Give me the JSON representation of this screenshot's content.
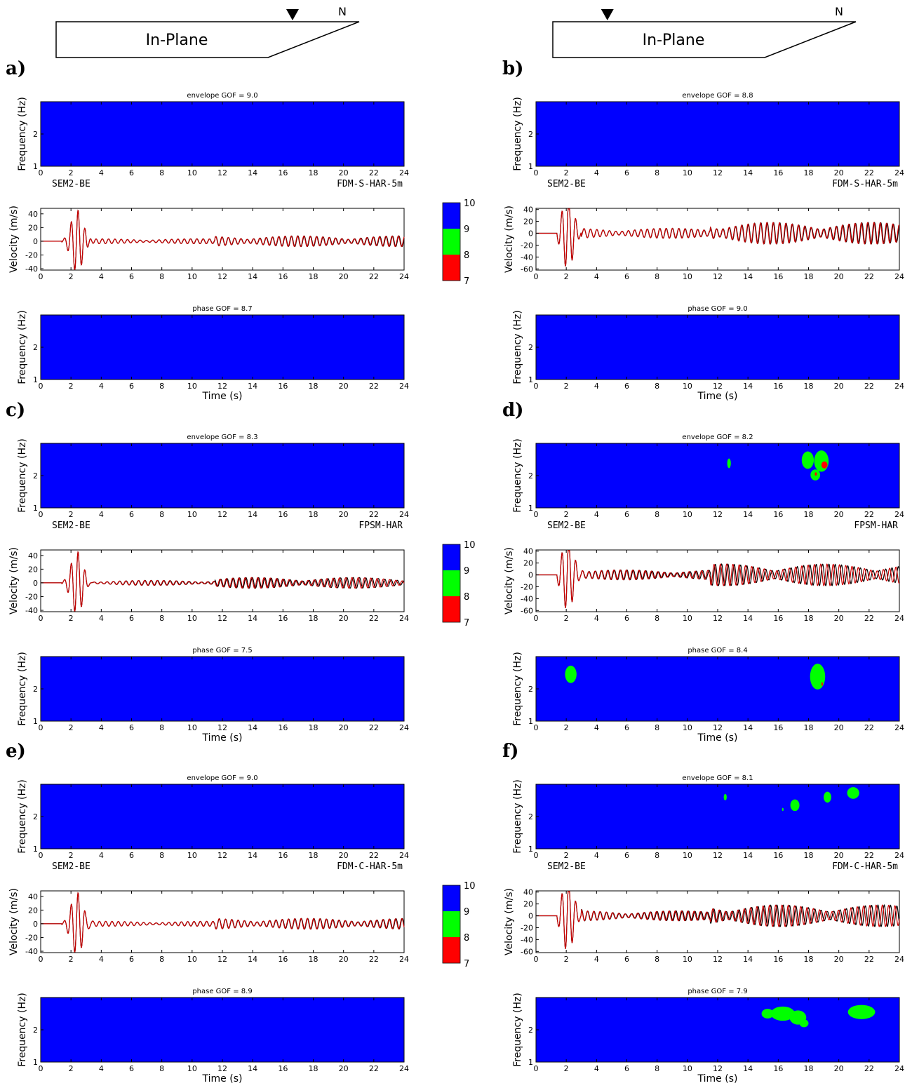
{
  "header": {
    "left": {
      "label": "In-Plane",
      "north": "N",
      "station_frac": 0.78
    },
    "right": {
      "label": "In-Plane",
      "north": "N",
      "station_frac": 0.18
    }
  },
  "colorbar": {
    "ticks": [
      "10",
      "9",
      "8",
      "7"
    ],
    "colors": [
      "#0000ff",
      "#00ff00",
      "#ff0000"
    ]
  },
  "colors": {
    "background": "#0000ff",
    "good": "#00ff00",
    "bad": "#ff0000",
    "reference": "#000000",
    "model": "#cc0000",
    "label_red": "#ff0000"
  },
  "axis_labels": {
    "frequency": "Frequency (Hz)",
    "velocity": "Velocity (m/s)",
    "time": "Time (s)"
  },
  "chart_data": [
    {
      "panel": "a)",
      "type": "heatmap",
      "reference": "SEM2-BE",
      "model": "FDM-S-HAR-5m",
      "envelope_title": "envelope GOF = 9.0",
      "phase_title": "phase GOF = 8.7",
      "xlim": [
        0,
        24
      ],
      "freq_ylim": [
        1,
        3
      ],
      "freq_yticks": [
        1,
        2
      ],
      "vel_ylim": [
        -42,
        48
      ],
      "vel_yticks": [
        -40,
        -20,
        0,
        20,
        40
      ],
      "envelope_blobs": [],
      "phase_blobs": [],
      "velocity": {
        "peak_amp": 46,
        "peak_time": 2.4,
        "coda_amp": 6,
        "diff": 0.1
      }
    },
    {
      "panel": "b)",
      "type": "heatmap",
      "reference": "SEM2-BE",
      "model": "FDM-S-HAR-5m",
      "envelope_title": "envelope GOF = 8.8",
      "phase_title": "phase GOF = 9.0",
      "xlim": [
        0,
        24
      ],
      "freq_ylim": [
        1,
        3
      ],
      "freq_yticks": [
        1,
        2
      ],
      "vel_ylim": [
        -62,
        42
      ],
      "vel_yticks": [
        -60,
        -40,
        -20,
        0,
        20,
        40
      ],
      "envelope_blobs": [],
      "phase_blobs": [],
      "velocity": {
        "peak_amp": 60,
        "peak_time": 2.1,
        "coda_amp": 14,
        "diff": 0.12
      }
    },
    {
      "panel": "c)",
      "type": "heatmap",
      "reference": "SEM2-BE",
      "model": "FPSM-HAR",
      "envelope_title": "envelope GOF = 8.3",
      "phase_title": "phase GOF = 7.5",
      "xlim": [
        0,
        24
      ],
      "freq_ylim": [
        1,
        3
      ],
      "freq_yticks": [
        1,
        2
      ],
      "vel_ylim": [
        -42,
        48
      ],
      "vel_yticks": [
        -40,
        -20,
        0,
        20,
        40
      ],
      "envelope_blobs": [],
      "phase_blobs": [],
      "velocity": {
        "peak_amp": 46,
        "peak_time": 2.4,
        "coda_amp": 6,
        "diff": 0.3
      }
    },
    {
      "panel": "d)",
      "type": "heatmap",
      "reference": "SEM2-BE",
      "model": "FPSM-HAR",
      "envelope_title": "envelope GOF = 8.2",
      "phase_title": "phase GOF = 8.4",
      "xlim": [
        0,
        24
      ],
      "freq_ylim": [
        1,
        3
      ],
      "freq_yticks": [
        1,
        2
      ],
      "vel_ylim": [
        -62,
        42
      ],
      "vel_yticks": [
        -60,
        -40,
        -20,
        0,
        20,
        40,
        60
      ],
      "envelope_blobs": [
        {
          "t": 12.75,
          "f": 2.38,
          "rt": 0.12,
          "rf": 0.15,
          "c": "good"
        },
        {
          "t": 17.95,
          "f": 2.48,
          "rt": 0.4,
          "rf": 0.27,
          "c": "good"
        },
        {
          "t": 18.85,
          "f": 2.45,
          "rt": 0.48,
          "rf": 0.33,
          "c": "good"
        },
        {
          "t": 18.45,
          "f": 2.02,
          "rt": 0.32,
          "rf": 0.17,
          "c": "good"
        },
        {
          "t": 19.05,
          "f": 2.33,
          "rt": 0.2,
          "rf": 0.11,
          "c": "bad"
        },
        {
          "t": 18.48,
          "f": 2.05,
          "rt": 0.07,
          "rf": 0.05,
          "c": "bad"
        }
      ],
      "phase_blobs": [
        {
          "t": 2.3,
          "f": 2.45,
          "rt": 0.38,
          "rf": 0.27,
          "c": "good"
        },
        {
          "t": 18.6,
          "f": 2.38,
          "rt": 0.5,
          "rf": 0.4,
          "c": "good"
        },
        {
          "t": 18.9,
          "f": 2.15,
          "rt": 0.05,
          "rf": 0.06,
          "c": "bad"
        }
      ],
      "velocity": {
        "peak_amp": 60,
        "peak_time": 2.1,
        "coda_amp": 14,
        "diff": 0.5
      }
    },
    {
      "panel": "e)",
      "type": "heatmap",
      "reference": "SEM2-BE",
      "model": "FDM-C-HAR-5m",
      "envelope_title": "envelope GOF = 9.0",
      "phase_title": "phase GOF = 8.9",
      "xlim": [
        0,
        24
      ],
      "freq_ylim": [
        1,
        3
      ],
      "freq_yticks": [
        1,
        2
      ],
      "vel_ylim": [
        -42,
        48
      ],
      "vel_yticks": [
        -40,
        -20,
        0,
        20,
        40
      ],
      "envelope_blobs": [],
      "phase_blobs": [],
      "velocity": {
        "peak_amp": 46,
        "peak_time": 2.4,
        "coda_amp": 6,
        "diff": 0.1
      }
    },
    {
      "panel": "f)",
      "type": "heatmap",
      "reference": "SEM2-BE",
      "model": "FDM-C-HAR-5m",
      "envelope_title": "envelope GOF = 8.1",
      "phase_title": "phase GOF = 7.9",
      "xlim": [
        0,
        24
      ],
      "freq_ylim": [
        1,
        3
      ],
      "freq_yticks": [
        1,
        2
      ],
      "vel_ylim": [
        -62,
        42
      ],
      "vel_yticks": [
        -60,
        -40,
        -20,
        0,
        20,
        40
      ],
      "envelope_blobs": [
        {
          "t": 12.5,
          "f": 2.6,
          "rt": 0.1,
          "rf": 0.1,
          "c": "good"
        },
        {
          "t": 16.3,
          "f": 2.22,
          "rt": 0.05,
          "rf": 0.05,
          "c": "good"
        },
        {
          "t": 17.1,
          "f": 2.35,
          "rt": 0.3,
          "rf": 0.18,
          "c": "good"
        },
        {
          "t": 19.25,
          "f": 2.6,
          "rt": 0.25,
          "rf": 0.17,
          "c": "good"
        },
        {
          "t": 20.95,
          "f": 2.73,
          "rt": 0.4,
          "rf": 0.18,
          "c": "good"
        }
      ],
      "phase_blobs": [
        {
          "t": 15.3,
          "f": 2.5,
          "rt": 0.4,
          "rf": 0.15,
          "c": "good"
        },
        {
          "t": 16.3,
          "f": 2.5,
          "rt": 0.8,
          "rf": 0.22,
          "c": "good"
        },
        {
          "t": 17.3,
          "f": 2.38,
          "rt": 0.55,
          "rf": 0.22,
          "c": "good"
        },
        {
          "t": 17.7,
          "f": 2.2,
          "rt": 0.3,
          "rf": 0.12,
          "c": "good"
        },
        {
          "t": 21.5,
          "f": 2.55,
          "rt": 0.9,
          "rf": 0.22,
          "c": "good"
        }
      ],
      "velocity": {
        "peak_amp": 60,
        "peak_time": 2.1,
        "coda_amp": 14,
        "diff": 0.4
      }
    }
  ]
}
